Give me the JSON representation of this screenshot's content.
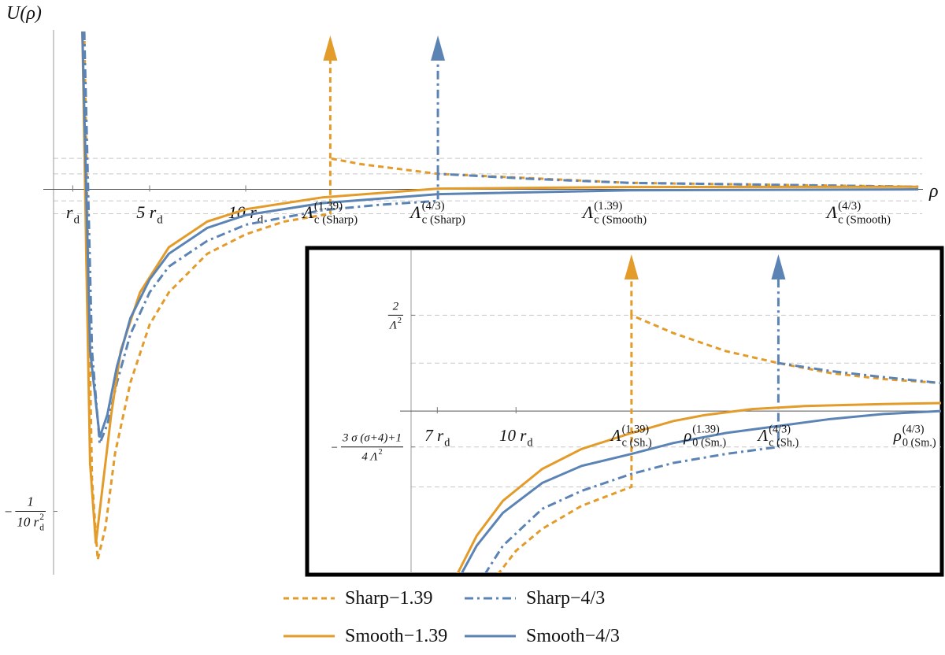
{
  "chart_data": [
    {
      "type": "line",
      "xlabel": "ρ",
      "ylabel": "U(ρ)",
      "xlim": [
        0,
        45.2
      ],
      "ylim": [
        -0.116,
        0.049
      ],
      "xticks": [
        {
          "value": 1,
          "label": {
            "text": "r",
            "sub": "d"
          }
        },
        {
          "value": 5,
          "label": {
            "text": "5 r",
            "sub": "d"
          }
        },
        {
          "value": 10,
          "label": {
            "text": "10 r",
            "sub": "d"
          }
        }
      ],
      "yticks": [
        {
          "value": -0.1,
          "label": {
            "sign": "−",
            "num": "1",
            "den": "10 r",
            "sub": "d",
            "sup": "2"
          }
        }
      ],
      "hlines": [
        0.0096,
        0.0048,
        -0.0036,
        -0.0076
      ],
      "annotations": [
        {
          "x": 14.4,
          "text": "Λ",
          "sub": "c (Sharp)",
          "sup": "(1.39)"
        },
        {
          "x": 20,
          "text": "Λ",
          "sub": "c (Sharp)",
          "sup": "(4/3)"
        },
        {
          "x": 29.2,
          "text": "Λ",
          "sub": "c (Smooth)",
          "sup": "(1.39)"
        },
        {
          "x": 41.9,
          "text": "Λ",
          "sub": "c (Smooth)",
          "sup": "(4/3)"
        }
      ],
      "series": [
        {
          "name": "Sharp−1.39",
          "color": "#e39b2a",
          "style": "dashed",
          "x": [
            1.6,
            1.8,
            2.0,
            2.3,
            2.7,
            3.2,
            4,
            5,
            6,
            8,
            10,
            12,
            14.4,
            14.4,
            16,
            20,
            30,
            45
          ],
          "values": [
            0.049,
            -0.02,
            -0.09,
            -0.115,
            -0.105,
            -0.082,
            -0.06,
            -0.042,
            -0.032,
            -0.02,
            -0.014,
            -0.01,
            -0.0076,
            0.0096,
            0.0078,
            0.0048,
            0.002,
            0.0008
          ]
        },
        {
          "name": "Sharp−4/3",
          "color": "#5b84b5",
          "style": "dashdot",
          "x": [
            1.6,
            1.8,
            2.0,
            2.4,
            2.8,
            3.3,
            4,
            5,
            6,
            8,
            10,
            14,
            17,
            20,
            20,
            25,
            30,
            45
          ],
          "values": [
            0.049,
            0.0,
            -0.05,
            -0.079,
            -0.073,
            -0.06,
            -0.045,
            -0.032,
            -0.024,
            -0.016,
            -0.011,
            -0.0065,
            -0.0048,
            -0.0036,
            0.0048,
            0.0032,
            0.002,
            0.0008
          ]
        },
        {
          "name": "Smooth−1.39",
          "color": "#e39b2a",
          "style": "solid",
          "x": [
            1.5,
            1.7,
            1.9,
            2.2,
            2.5,
            3,
            3.5,
            4.5,
            6,
            8,
            10,
            14,
            20,
            30,
            45
          ],
          "values": [
            0.049,
            -0.02,
            -0.085,
            -0.11,
            -0.095,
            -0.07,
            -0.05,
            -0.032,
            -0.018,
            -0.01,
            -0.0062,
            -0.0025,
            0.0002,
            0.0007,
            0.0008
          ]
        },
        {
          "name": "Smooth−4/3",
          "color": "#5b84b5",
          "style": "solid",
          "x": [
            1.5,
            1.7,
            1.9,
            2.4,
            2.8,
            3.3,
            4,
            5,
            6,
            8,
            10,
            14,
            20,
            30,
            45
          ],
          "values": [
            0.049,
            0.0,
            -0.05,
            -0.077,
            -0.07,
            -0.055,
            -0.04,
            -0.028,
            -0.02,
            -0.012,
            -0.008,
            -0.0043,
            -0.0015,
            -0.0003,
            0
          ]
        }
      ]
    },
    {
      "type": "line",
      "xlim": [
        6,
        26.2
      ],
      "ylim": [
        -0.0164,
        0.0161
      ],
      "xticks": [
        {
          "value": 7,
          "label": {
            "text": "7 r",
            "sub": "d"
          }
        },
        {
          "value": 10,
          "label": {
            "text": "10 r",
            "sub": "d"
          }
        }
      ],
      "yticks": [
        {
          "value": 0.0096,
          "label": {
            "num": "2",
            "den": "Λ",
            "sup": "2"
          }
        },
        {
          "value": -0.0036,
          "label": {
            "sign": "−",
            "num": "3 σ (σ+4)+1",
            "den": "4 Λ",
            "sup": "2"
          }
        }
      ],
      "hlines": [
        0.0096,
        0.0048,
        -0.0036,
        -0.0076
      ],
      "annotations": [
        {
          "x": 14.4,
          "text": "Λ",
          "sub": "c (Sh.)",
          "sup": "(1.39)"
        },
        {
          "x": 17.2,
          "text": "ρ",
          "sub": "0 (Sm.)",
          "sup": "(1.39)"
        },
        {
          "x": 20,
          "text": "Λ",
          "sub": "c (Sh.)",
          "sup": "(4/3)"
        },
        {
          "x": 25.2,
          "text": "ρ",
          "sub": "0 (Sm.)",
          "sup": "(4/3)"
        }
      ],
      "series": [
        {
          "color": "#e39b2a",
          "style": "dashed",
          "x": [
            9.3,
            10,
            11,
            12.5,
            14.4,
            14.4,
            16,
            18,
            20,
            22,
            24,
            26.2
          ],
          "values": [
            -0.0164,
            -0.014,
            -0.0118,
            -0.0095,
            -0.0076,
            0.0096,
            0.0078,
            0.006,
            0.0048,
            0.0038,
            0.0032,
            0.0028
          ]
        },
        {
          "color": "#5b84b5",
          "style": "dashdot",
          "x": [
            8.8,
            9.5,
            11,
            12.5,
            14.4,
            16,
            18,
            20,
            20,
            22,
            24,
            26.2
          ],
          "values": [
            -0.0164,
            -0.0135,
            -0.0098,
            -0.008,
            -0.0063,
            -0.0052,
            -0.0043,
            -0.0036,
            0.0048,
            0.004,
            0.0034,
            0.0028
          ]
        },
        {
          "color": "#e39b2a",
          "style": "solid",
          "x": [
            7.75,
            8.5,
            9.5,
            11,
            12.5,
            14.4,
            16,
            17.2,
            19,
            21,
            24,
            26.2
          ],
          "values": [
            -0.0164,
            -0.0125,
            -0.009,
            -0.0058,
            -0.0038,
            -0.0022,
            -0.001,
            -0.0004,
            0.0002,
            0.0005,
            0.0007,
            0.0008
          ]
        },
        {
          "color": "#5b84b5",
          "style": "solid",
          "x": [
            7.9,
            8.5,
            9.5,
            11,
            12.5,
            14.4,
            16,
            18,
            20,
            22,
            24,
            26.2
          ],
          "values": [
            -0.0164,
            -0.0135,
            -0.0102,
            -0.0072,
            -0.0055,
            -0.0043,
            -0.0032,
            -0.0022,
            -0.0015,
            -0.0008,
            -0.0003,
            0
          ]
        }
      ]
    }
  ]
}
